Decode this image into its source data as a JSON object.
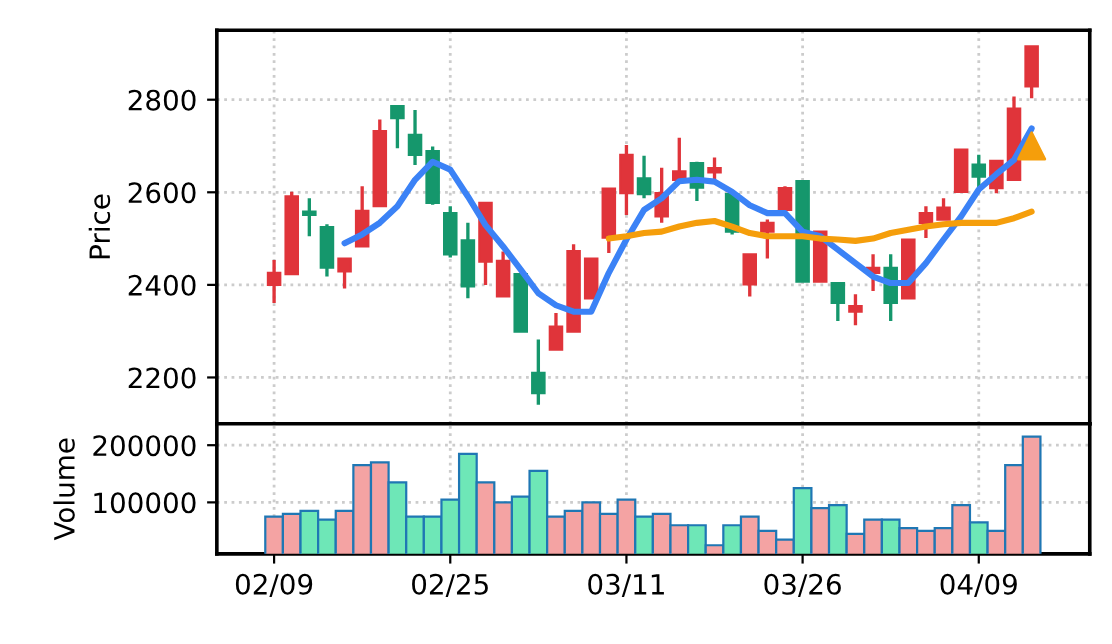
{
  "chart_data": [
    {
      "type": "candlestick",
      "ylabel": "Price",
      "ohlc": [
        [
          2400,
          2454,
          2361,
          2426
        ],
        [
          2423,
          2601,
          2423,
          2591
        ],
        [
          2558,
          2587,
          2505,
          2551
        ],
        [
          2525,
          2531,
          2418,
          2437
        ],
        [
          2429,
          2457,
          2392,
          2457
        ],
        [
          2483,
          2613,
          2483,
          2560
        ],
        [
          2570,
          2757,
          2569,
          2732
        ],
        [
          2786,
          2786,
          2695,
          2760
        ],
        [
          2724,
          2778,
          2659,
          2681
        ],
        [
          2689,
          2699,
          2573,
          2577
        ],
        [
          2555,
          2570,
          2459,
          2466
        ],
        [
          2496,
          2534,
          2371,
          2397
        ],
        [
          2450,
          2577,
          2400,
          2577
        ],
        [
          2375,
          2472,
          2375,
          2452
        ],
        [
          2423,
          2423,
          2299,
          2299
        ],
        [
          2210,
          2282,
          2141,
          2166
        ],
        [
          2260,
          2339,
          2260,
          2310
        ],
        [
          2299,
          2488,
          2299,
          2473
        ],
        [
          2371,
          2457,
          2371,
          2457
        ],
        [
          2502,
          2608,
          2469,
          2608
        ],
        [
          2598,
          2702,
          2551,
          2681
        ],
        [
          2630,
          2679,
          2587,
          2596
        ],
        [
          2548,
          2653,
          2534,
          2598
        ],
        [
          2627,
          2718,
          2627,
          2645
        ],
        [
          2663,
          2666,
          2581,
          2610
        ],
        [
          2643,
          2675,
          2627,
          2652
        ],
        [
          2596,
          2596,
          2509,
          2515
        ],
        [
          2401,
          2466,
          2375,
          2466
        ],
        [
          2515,
          2541,
          2457,
          2534
        ],
        [
          2562,
          2613,
          2562,
          2609
        ],
        [
          2624,
          2624,
          2407,
          2407
        ],
        [
          2407,
          2515,
          2407,
          2515
        ],
        [
          2404,
          2404,
          2322,
          2361
        ],
        [
          2342,
          2380,
          2313,
          2354
        ],
        [
          2426,
          2466,
          2387,
          2437
        ],
        [
          2437,
          2466,
          2322,
          2361
        ],
        [
          2371,
          2498,
          2371,
          2498
        ],
        [
          2534,
          2570,
          2501,
          2555
        ],
        [
          2541,
          2587,
          2540,
          2567
        ],
        [
          2601,
          2692,
          2601,
          2692
        ],
        [
          2660,
          2681,
          2601,
          2634
        ],
        [
          2609,
          2668,
          2598,
          2668
        ],
        [
          2627,
          2807,
          2627,
          2781
        ],
        [
          2829,
          2915,
          2803,
          2915
        ]
      ],
      "colors": [
        "#e0343a",
        "#e0343a",
        "#15976c",
        "#15976c",
        "#e0343a",
        "#e0343a",
        "#e0343a",
        "#15976c",
        "#15976c",
        "#15976c",
        "#15976c",
        "#15976c",
        "#e0343a",
        "#e0343a",
        "#15976c",
        "#15976c",
        "#e0343a",
        "#e0343a",
        "#e0343a",
        "#e0343a",
        "#e0343a",
        "#15976c",
        "#e0343a",
        "#e0343a",
        "#15976c",
        "#e0343a",
        "#15976c",
        "#e0343a",
        "#e0343a",
        "#e0343a",
        "#15976c",
        "#e0343a",
        "#15976c",
        "#e0343a",
        "#e0343a",
        "#15976c",
        "#e0343a",
        "#e0343a",
        "#e0343a",
        "#e0343a",
        "#15976c",
        "#e0343a",
        "#e0343a",
        "#e0343a"
      ],
      "series": [
        {
          "type": "line",
          "color": "#3b82f6",
          "values": [
            null,
            null,
            null,
            null,
            2490,
            2509,
            2534,
            2570,
            2627,
            2666,
            2649,
            2591,
            2529,
            2483,
            2433,
            2382,
            2356,
            2342,
            2342,
            2426,
            2498,
            2562,
            2587,
            2624,
            2627,
            2623,
            2601,
            2572,
            2555,
            2555,
            2515,
            2505,
            2476,
            2447,
            2418,
            2404,
            2404,
            2447,
            2498,
            2548,
            2606,
            2639,
            2670,
            2738
          ]
        },
        {
          "type": "line",
          "color": "#f59e0b",
          "values": [
            null,
            null,
            null,
            null,
            null,
            null,
            null,
            null,
            null,
            null,
            null,
            null,
            null,
            null,
            null,
            null,
            null,
            null,
            null,
            2500,
            2505,
            2512,
            2515,
            2526,
            2534,
            2538,
            2526,
            2512,
            2505,
            2505,
            2505,
            2500,
            2498,
            2495,
            2500,
            2512,
            2519,
            2526,
            2531,
            2534,
            2534,
            2534,
            2544,
            2558
          ]
        },
        {
          "type": "scatter",
          "marker": "triangle",
          "color": "#f59e0b",
          "values": [
            null,
            null,
            null,
            null,
            null,
            null,
            null,
            null,
            null,
            null,
            null,
            null,
            null,
            null,
            null,
            null,
            null,
            null,
            null,
            null,
            null,
            null,
            null,
            null,
            null,
            null,
            null,
            null,
            null,
            null,
            null,
            null,
            null,
            null,
            null,
            null,
            null,
            null,
            null,
            null,
            null,
            null,
            null,
            2700
          ]
        }
      ],
      "ylim": [
        2100,
        2950
      ],
      "yticks": [
        2200,
        2400,
        2600,
        2800
      ],
      "grid": true,
      "tick_labels": "y"
    },
    {
      "type": "bar",
      "ylabel": "Volume",
      "categories": [
        "02/09",
        null,
        null,
        null,
        null,
        null,
        null,
        null,
        null,
        null,
        "02/25",
        null,
        null,
        null,
        null,
        null,
        null,
        null,
        null,
        null,
        "03/11",
        null,
        null,
        null,
        null,
        null,
        null,
        null,
        null,
        null,
        "03/26",
        null,
        null,
        null,
        null,
        null,
        null,
        null,
        null,
        null,
        "04/09",
        null,
        null,
        null
      ],
      "values": [
        75000,
        80000,
        85000,
        70000,
        85000,
        165000,
        170000,
        135000,
        75000,
        75000,
        105000,
        185000,
        135000,
        100000,
        110000,
        155000,
        75000,
        85000,
        100000,
        80000,
        105000,
        75000,
        80000,
        60000,
        60000,
        25000,
        60000,
        75000,
        50000,
        35000,
        125000,
        90000,
        95000,
        45000,
        70000,
        70000,
        55000,
        50000,
        55000,
        95000,
        65000,
        50000,
        165000,
        215000
      ],
      "colors": [
        "#f4a3a3",
        "#f4a3a3",
        "#6ee7b7",
        "#6ee7b7",
        "#f4a3a3",
        "#f4a3a3",
        "#f4a3a3",
        "#6ee7b7",
        "#6ee7b7",
        "#6ee7b7",
        "#6ee7b7",
        "#6ee7b7",
        "#f4a3a3",
        "#f4a3a3",
        "#6ee7b7",
        "#6ee7b7",
        "#f4a3a3",
        "#f4a3a3",
        "#f4a3a3",
        "#f4a3a3",
        "#f4a3a3",
        "#6ee7b7",
        "#f4a3a3",
        "#f4a3a3",
        "#6ee7b7",
        "#f4a3a3",
        "#6ee7b7",
        "#f4a3a3",
        "#f4a3a3",
        "#f4a3a3",
        "#6ee7b7",
        "#f4a3a3",
        "#6ee7b7",
        "#f4a3a3",
        "#f4a3a3",
        "#6ee7b7",
        "#f4a3a3",
        "#f4a3a3",
        "#f4a3a3",
        "#f4a3a3",
        "#6ee7b7",
        "#f4a3a3",
        "#f4a3a3",
        "#f4a3a3"
      ],
      "ylim": [
        10000,
        237500
      ],
      "yticks": [
        100000,
        200000
      ],
      "grid": true
    }
  ]
}
